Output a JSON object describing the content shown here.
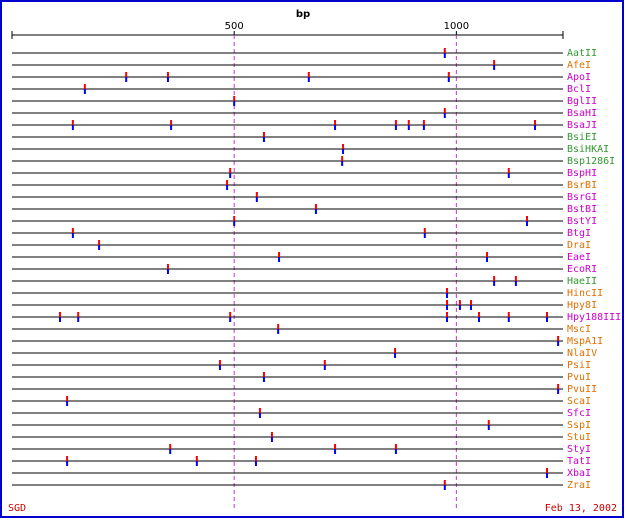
{
  "chart_data": {
    "type": "strip",
    "title": "bp",
    "xlim": [
      0,
      1240
    ],
    "xticks": [
      500,
      1000
    ],
    "grid": true,
    "grid_color": "#cc33cc",
    "cut_top_color": "#ff0000",
    "cut_bottom_color": "#0000ff",
    "categories": [
      "AatII",
      "AfeI",
      "ApoI",
      "BclI",
      "BglII",
      "BsaHI",
      "BsaJI",
      "BsiEI",
      "BsiHKAI",
      "Bsp1286I",
      "BspHI",
      "BsrBI",
      "BsrGI",
      "BstBI",
      "BstYI",
      "BtgI",
      "DraI",
      "EaeI",
      "EcoRI",
      "HaeII",
      "HincII",
      "Hpy8I",
      "Hpy188III",
      "MscI",
      "MspA1I",
      "NlaIV",
      "PsiI",
      "PvuI",
      "PvuII",
      "ScaI",
      "SfcI",
      "SspI",
      "StuI",
      "StyI",
      "TatI",
      "XbaI",
      "ZraI"
    ],
    "label_colors": [
      "#339933",
      "#e07000",
      "#cc00cc",
      "#cc00cc",
      "#cc00cc",
      "#cc00cc",
      "#cc00cc",
      "#339933",
      "#339933",
      "#339933",
      "#cc00cc",
      "#e07000",
      "#cc00cc",
      "#cc00cc",
      "#cc00cc",
      "#cc00cc",
      "#e07000",
      "#cc00cc",
      "#cc00cc",
      "#339933",
      "#e07000",
      "#e07000",
      "#cc00cc",
      "#e07000",
      "#e07000",
      "#e07000",
      "#e07000",
      "#e07000",
      "#e07000",
      "#e07000",
      "#cc00cc",
      "#e07000",
      "#e07000",
      "#cc00cc",
      "#cc00cc",
      "#cc00cc",
      "#e07000"
    ],
    "values": [
      [
        974
      ],
      [
        1085
      ],
      [
        257,
        351,
        668,
        983
      ],
      [
        164
      ],
      [
        500
      ],
      [
        974
      ],
      [
        137,
        358,
        727,
        864,
        893,
        927,
        1177
      ],
      [
        567
      ],
      [
        745
      ],
      [
        743
      ],
      [
        491,
        1118
      ],
      [
        484
      ],
      [
        551
      ],
      [
        684
      ],
      [
        500,
        1159
      ],
      [
        137,
        929
      ],
      [
        196
      ],
      [
        601,
        1069
      ],
      [
        351
      ],
      [
        1085,
        1134
      ],
      [
        979
      ],
      [
        979,
        1008,
        1033
      ],
      [
        108,
        149,
        491,
        979,
        1051,
        1118,
        1204
      ],
      [
        599
      ],
      [
        1229
      ],
      [
        862
      ],
      [
        468,
        704
      ],
      [
        567
      ],
      [
        1229
      ],
      [
        124
      ],
      [
        558
      ],
      [
        1073
      ],
      [
        585
      ],
      [
        356,
        727,
        864
      ],
      [
        124,
        416,
        549
      ],
      [
        1204
      ],
      [
        974
      ]
    ],
    "source": "SGD",
    "date": "Feb 13, 2002"
  }
}
